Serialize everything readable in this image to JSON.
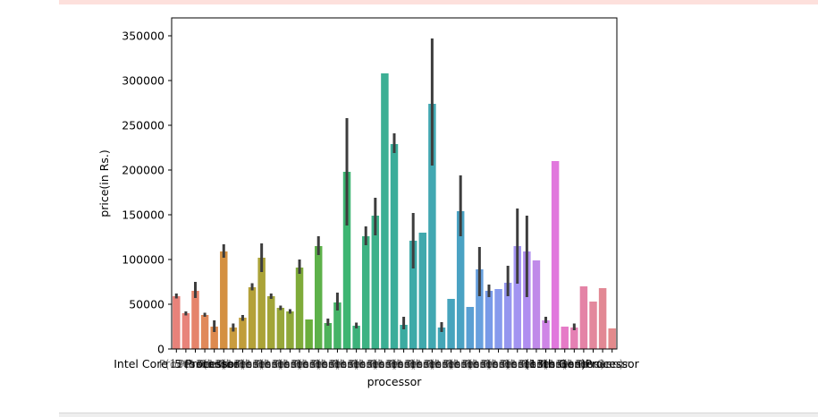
{
  "chart_data": {
    "type": "bar",
    "xlabel": "processor",
    "ylabel": "price(in Rs.)",
    "ylim": [
      0,
      370000
    ],
    "yticks": [
      0,
      50000,
      100000,
      150000,
      200000,
      250000,
      300000,
      350000
    ],
    "ytick_labels": [
      "0",
      "50000",
      "100000",
      "150000",
      "200000",
      "250000",
      "300000",
      "350000"
    ],
    "xtick_visible_text": [
      "Intel Core i5 Processor",
      "(13th Gen)",
      "Processor"
    ],
    "grid": false,
    "values": [
      59000,
      40000,
      65000,
      38000,
      25000,
      109000,
      24000,
      35000,
      69000,
      102000,
      59000,
      46000,
      42000,
      91000,
      33000,
      115000,
      29000,
      52000,
      198000,
      26000,
      126000,
      149000,
      308000,
      229000,
      27000,
      121000,
      130000,
      274000,
      24000,
      56000,
      154000,
      47000,
      89000,
      65000,
      67000,
      74000,
      115000,
      109000,
      99000,
      32000,
      210000,
      25000,
      24000,
      70000,
      53000,
      68000,
      23000
    ],
    "error_low": [
      56500,
      37500,
      57000,
      36000,
      19000,
      102000,
      19500,
      31500,
      65500,
      86000,
      56000,
      43500,
      39500,
      84000,
      33000,
      105000,
      26000,
      43000,
      138000,
      23000,
      116000,
      127000,
      308000,
      219000,
      22000,
      90000,
      130000,
      205000,
      19000,
      56000,
      126000,
      47000,
      59000,
      58000,
      67000,
      59000,
      73000,
      58000,
      99000,
      29000,
      210000,
      25000,
      21000,
      70000,
      53000,
      68000,
      23000
    ],
    "error_high": [
      62000,
      42000,
      75000,
      40500,
      32000,
      117000,
      28500,
      38000,
      73500,
      118000,
      62000,
      48500,
      44500,
      100000,
      33000,
      126000,
      34000,
      63000,
      258000,
      29500,
      137000,
      169000,
      308000,
      241000,
      36000,
      152000,
      130000,
      347000,
      30000,
      56000,
      194000,
      47000,
      114000,
      72000,
      67000,
      93000,
      157000,
      149000,
      99000,
      36000,
      210000,
      25000,
      28500,
      70000,
      53000,
      68000,
      23000
    ],
    "colors": [
      "#e8827a",
      "#e8837a",
      "#e5846b",
      "#e0895a",
      "#dd8a4f",
      "#d49041",
      "#c99c3f",
      "#c09d3b",
      "#b4a13a",
      "#aba338",
      "#a2a538",
      "#98a73a",
      "#8fa83a",
      "#7fab3a",
      "#6aae3c",
      "#5db14a",
      "#4eb35b",
      "#45b367",
      "#3db572",
      "#3db27b",
      "#3db283",
      "#3db18a",
      "#3caf94",
      "#3bad9a",
      "#3babA1",
      "#3eaaa8",
      "#40a9ad",
      "#42a8b2",
      "#44a6b7",
      "#47a4bd",
      "#4aa2c3",
      "#5a9fd3",
      "#68a0de",
      "#789ae8",
      "#869aed",
      "#9596ef",
      "#a394f1",
      "#b08ef0",
      "#c08ae9",
      "#cf85e6",
      "#e178dd",
      "#e67bc7",
      "#e580b4",
      "#e483a6",
      "#e3889d",
      "#e28894",
      "#e38a8c"
    ]
  }
}
